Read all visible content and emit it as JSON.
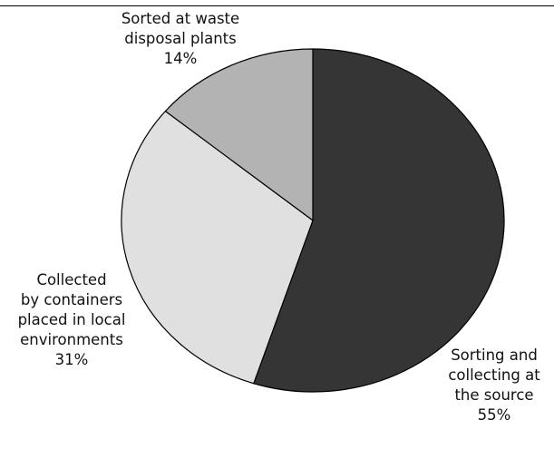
{
  "chart_data": {
    "type": "pie",
    "title": "",
    "start": "12 o'clock",
    "direction": "clockwise",
    "slices": [
      {
        "name": "Sorting and collecting at the source",
        "value": 55,
        "label_lines": [
          "Sorting and",
          "collecting at",
          "the source",
          "55%"
        ],
        "color": "#353535"
      },
      {
        "name": "Collected by containers placed in local environments",
        "value": 31,
        "label_lines": [
          "Collected",
          "by containers",
          "placed in local",
          "environments",
          "31%"
        ],
        "color": "#e0e0e0"
      },
      {
        "name": "Sorted at waste disposal plants",
        "value": 14,
        "label_lines": [
          "Sorted at waste",
          "disposal plants",
          "14%"
        ],
        "color": "#b3b3b3"
      }
    ]
  }
}
